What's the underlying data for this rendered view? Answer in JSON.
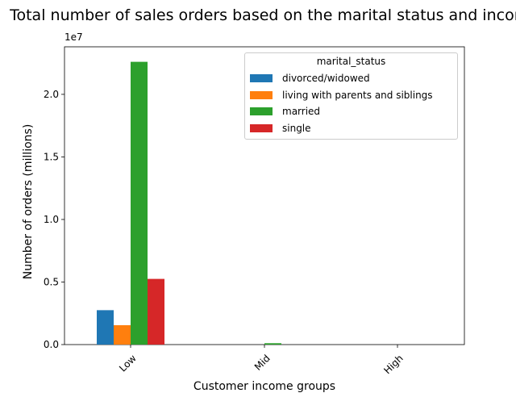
{
  "chart_data": {
    "type": "bar",
    "title": "Total number of sales orders based on the marital status and income",
    "xlabel": "Customer income groups",
    "ylabel": "Number of orders (millions)",
    "y_offset_text": "1e7",
    "categories": [
      "Low",
      "Mid",
      "High"
    ],
    "yticks": [
      "0.0",
      "0.5",
      "1.0",
      "1.5",
      "2.0"
    ],
    "ylim": [
      0,
      23800000
    ],
    "legend_title": "marital_status",
    "legend_position": "top-right",
    "grid": false,
    "series": [
      {
        "name": "divorced/widowed",
        "color": "#1f77b4",
        "values": [
          2750000,
          0,
          0
        ]
      },
      {
        "name": "living with parents and siblings",
        "color": "#ff7f0e",
        "values": [
          1550000,
          0,
          0
        ]
      },
      {
        "name": "married",
        "color": "#2ca02c",
        "values": [
          22600000,
          110000,
          0
        ]
      },
      {
        "name": "single",
        "color": "#d62728",
        "values": [
          5250000,
          0,
          0
        ]
      }
    ]
  }
}
